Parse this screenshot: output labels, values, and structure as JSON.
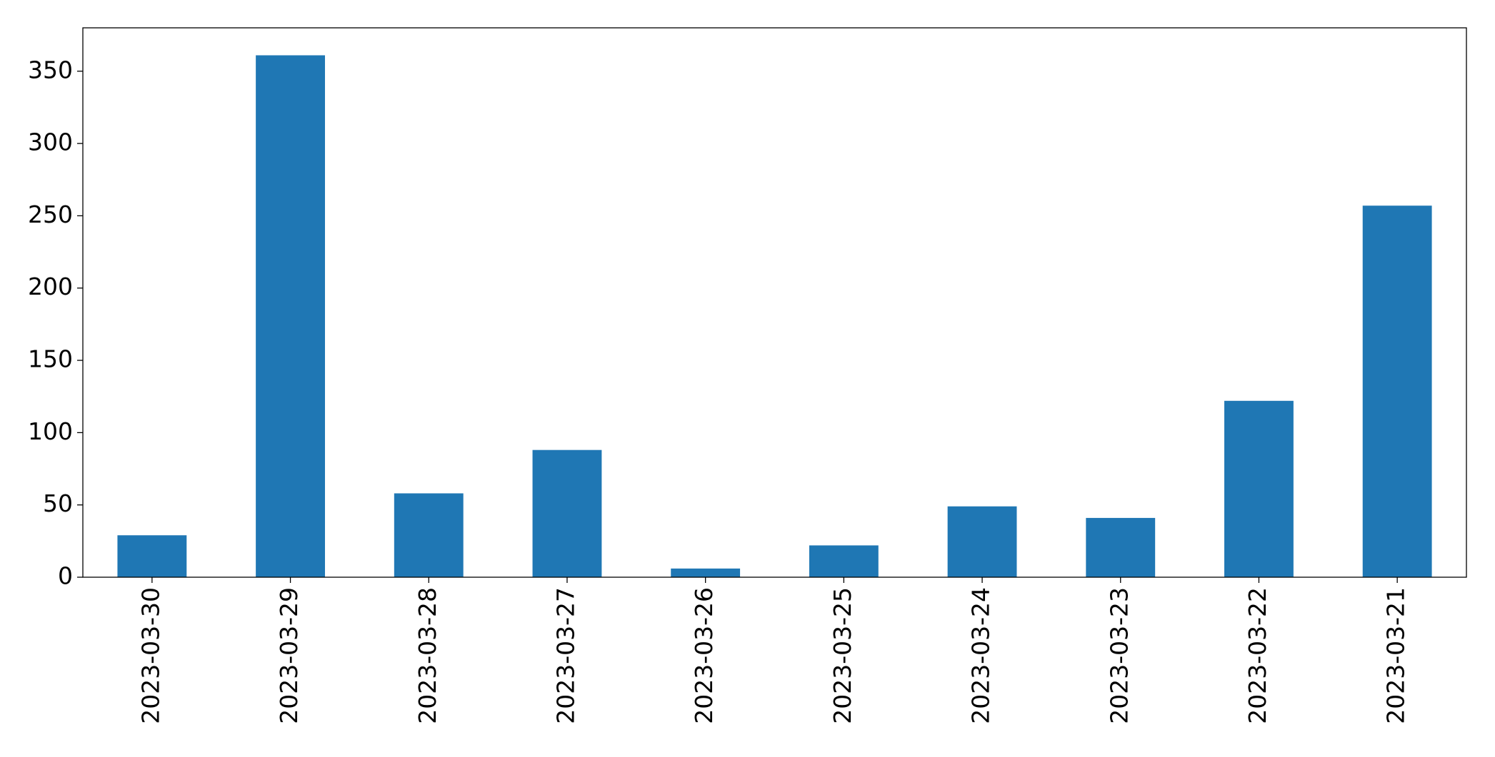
{
  "chart_data": {
    "type": "bar",
    "categories": [
      "2023-03-30",
      "2023-03-29",
      "2023-03-28",
      "2023-03-27",
      "2023-03-26",
      "2023-03-25",
      "2023-03-24",
      "2023-03-23",
      "2023-03-22",
      "2023-03-21"
    ],
    "values": [
      29,
      361,
      58,
      88,
      6,
      22,
      49,
      41,
      122,
      257
    ],
    "color": "#1f77b4",
    "ylim": [
      0,
      380
    ],
    "yticks": [
      0,
      50,
      100,
      150,
      200,
      250,
      300,
      350
    ],
    "grid": false
  }
}
